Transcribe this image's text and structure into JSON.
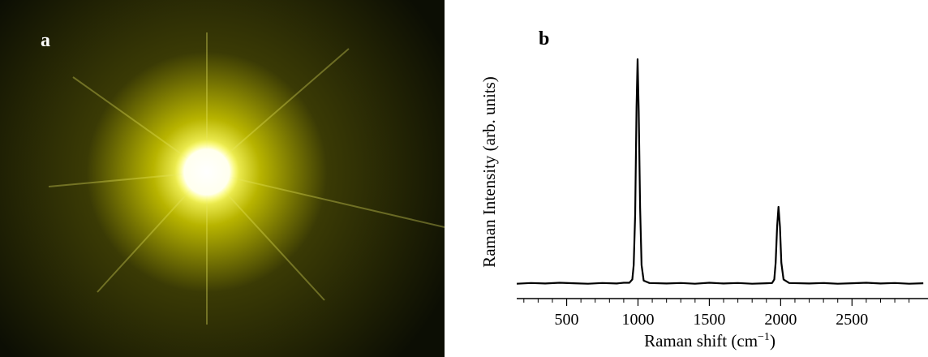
{
  "panel_a": {
    "label": "a"
  },
  "chart_data": {
    "type": "line",
    "label": "b",
    "x_label": {
      "text": "Raman shift (cm",
      "superscript": "−1",
      "suffix": ")"
    },
    "y_label": "Raman Intensity (arb. units)",
    "x": [
      150,
      250,
      350,
      450,
      550,
      650,
      750,
      850,
      900,
      940,
      960,
      970,
      980,
      990,
      997,
      1005,
      1015,
      1025,
      1040,
      1080,
      1200,
      1300,
      1400,
      1500,
      1600,
      1700,
      1800,
      1900,
      1940,
      1955,
      1965,
      1975,
      1985,
      1995,
      2005,
      2020,
      2060,
      2200,
      2300,
      2400,
      2500,
      2600,
      2700,
      2800,
      2900,
      3000
    ],
    "series": [
      {
        "color": "#000000",
        "values": [
          6.2,
          6.5,
          6.3,
          6.6,
          6.4,
          6.2,
          6.5,
          6.3,
          6.6,
          6.6,
          8,
          14,
          35,
          80,
          100,
          78,
          38,
          14,
          7.5,
          6.5,
          6.3,
          6.5,
          6.2,
          6.6,
          6.3,
          6.5,
          6.2,
          6.4,
          6.5,
          8,
          15,
          30,
          38.3,
          30,
          15,
          8,
          6.5,
          6.3,
          6.5,
          6.2,
          6.4,
          6.6,
          6.3,
          6.5,
          6.2,
          6.4
        ]
      }
    ],
    "xlim": [
      150,
      3010
    ],
    "ylim": [
      0,
      100
    ],
    "xticks": [
      500,
      1000,
      1500,
      2000,
      2500
    ],
    "xminorticks": [
      200,
      300,
      400,
      600,
      700,
      800,
      900,
      1100,
      1200,
      1300,
      1400,
      1600,
      1700,
      1800,
      1900,
      2100,
      2200,
      2300,
      2400,
      2600,
      2700,
      2800,
      2900
    ]
  }
}
